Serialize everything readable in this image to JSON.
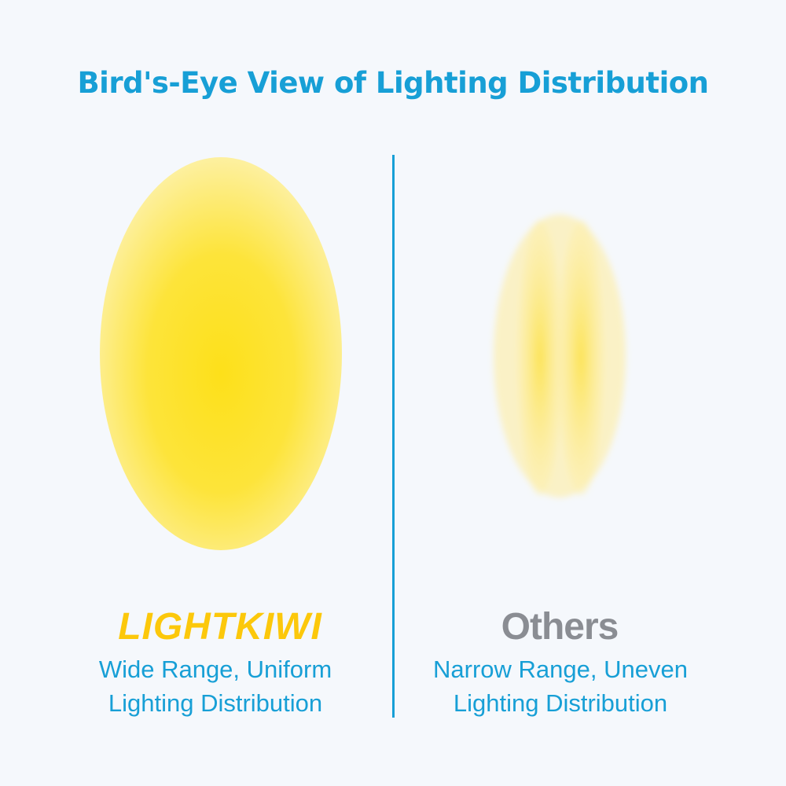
{
  "title": "Bird's-Eye View of Lighting Distribution",
  "colors": {
    "accent": "#179fd6",
    "light": "#fde01a",
    "brand": "#fcc80b",
    "others": "#8a8d93",
    "background": "#f5f8fc"
  },
  "left": {
    "brand": "LIGHTKIWI",
    "desc_line1": "Wide Range, Uniform",
    "desc_line2": "Lighting Distribution"
  },
  "right": {
    "label": "Others",
    "desc_line1": "Narrow Range, Uneven",
    "desc_line2": "Lighting Distribution"
  }
}
